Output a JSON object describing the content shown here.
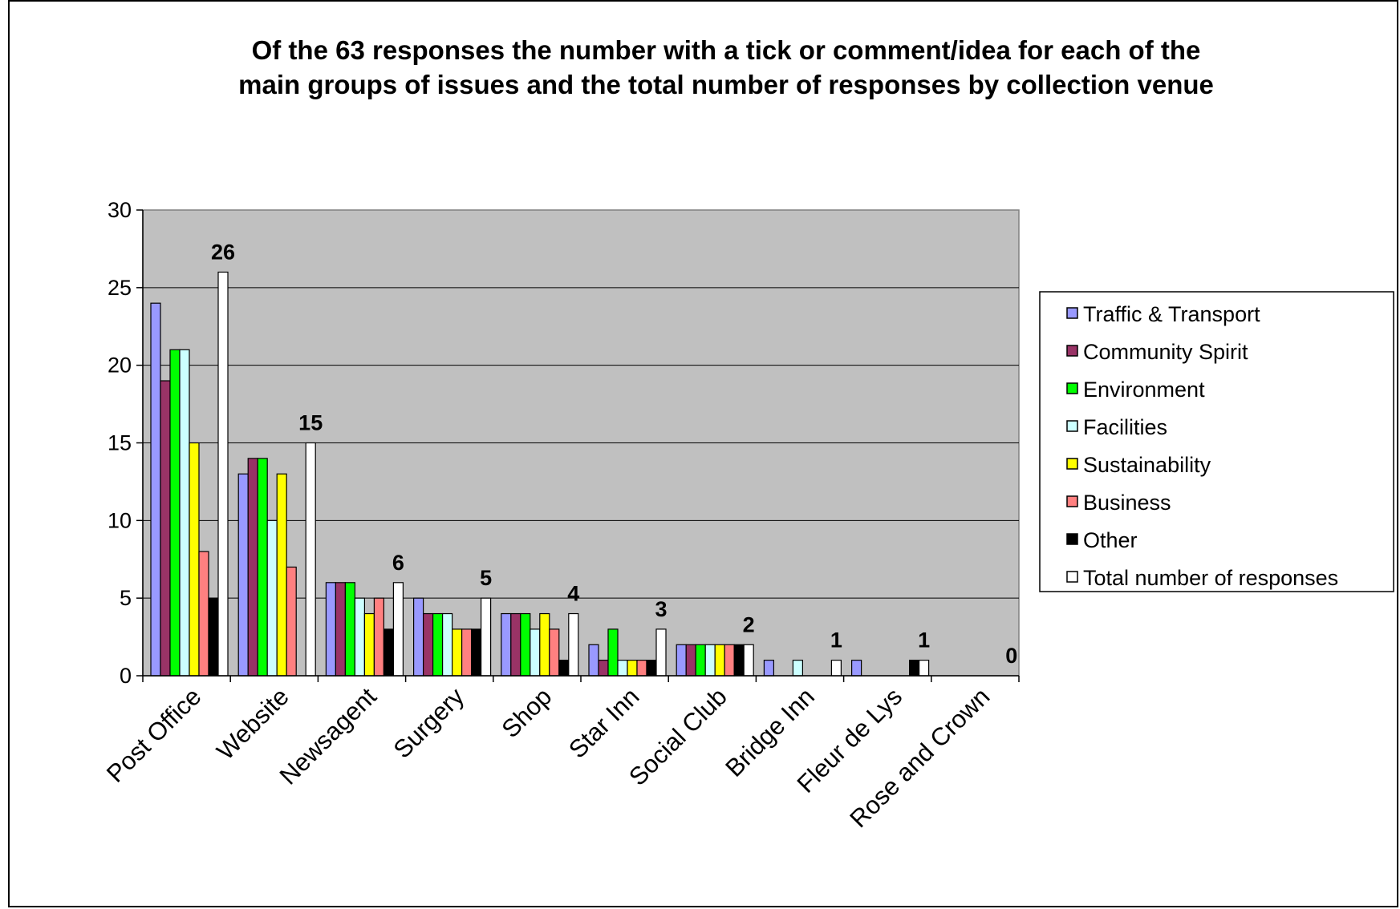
{
  "chart_data": {
    "type": "bar",
    "title_lines": [
      "Of the 63 responses the number with a tick or comment/idea for each of the",
      "main groups of issues and the total number of responses by collection venue"
    ],
    "categories": [
      "Post Office",
      "Website",
      "Newsagent",
      "Surgery",
      "Shop",
      "Star Inn",
      "Social Club",
      "Bridge Inn",
      "Fleur de Lys",
      "Rose and Crown"
    ],
    "ylim": [
      0,
      30
    ],
    "yticks": [
      0,
      5,
      10,
      15,
      20,
      25,
      30
    ],
    "grid": true,
    "legend_position": "right",
    "series": [
      {
        "name": "Traffic & Transport",
        "color": "#9999FF",
        "values": [
          24,
          13,
          6,
          5,
          4,
          2,
          2,
          1,
          1,
          0
        ]
      },
      {
        "name": "Community Spirit",
        "color": "#993366",
        "values": [
          19,
          14,
          6,
          4,
          4,
          1,
          2,
          0,
          0,
          0
        ]
      },
      {
        "name": "Environment",
        "color": "#00FF00",
        "values": [
          21,
          14,
          6,
          4,
          4,
          3,
          2,
          0,
          0,
          0
        ]
      },
      {
        "name": "Facilities",
        "color": "#CCFFFF",
        "values": [
          21,
          10,
          5,
          4,
          3,
          1,
          2,
          1,
          0,
          0
        ]
      },
      {
        "name": "Sustainability",
        "color": "#FFFF00",
        "values": [
          15,
          13,
          4,
          3,
          4,
          1,
          2,
          0,
          0,
          0
        ]
      },
      {
        "name": "Business",
        "color": "#FF8080",
        "values": [
          8,
          7,
          5,
          3,
          3,
          1,
          2,
          0,
          0,
          0
        ]
      },
      {
        "name": "Other",
        "color": "#000000",
        "values": [
          5,
          0,
          3,
          3,
          1,
          1,
          2,
          0,
          1,
          0
        ]
      },
      {
        "name": "Total number of responses",
        "color": "#FFFFFF",
        "values": [
          26,
          15,
          6,
          5,
          4,
          3,
          2,
          1,
          1,
          0
        ]
      }
    ],
    "data_labels": [
      "26",
      "15",
      "6",
      "5",
      "4",
      "3",
      "2",
      "1",
      "1",
      "0"
    ],
    "plot_background": "#C0C0C0"
  }
}
